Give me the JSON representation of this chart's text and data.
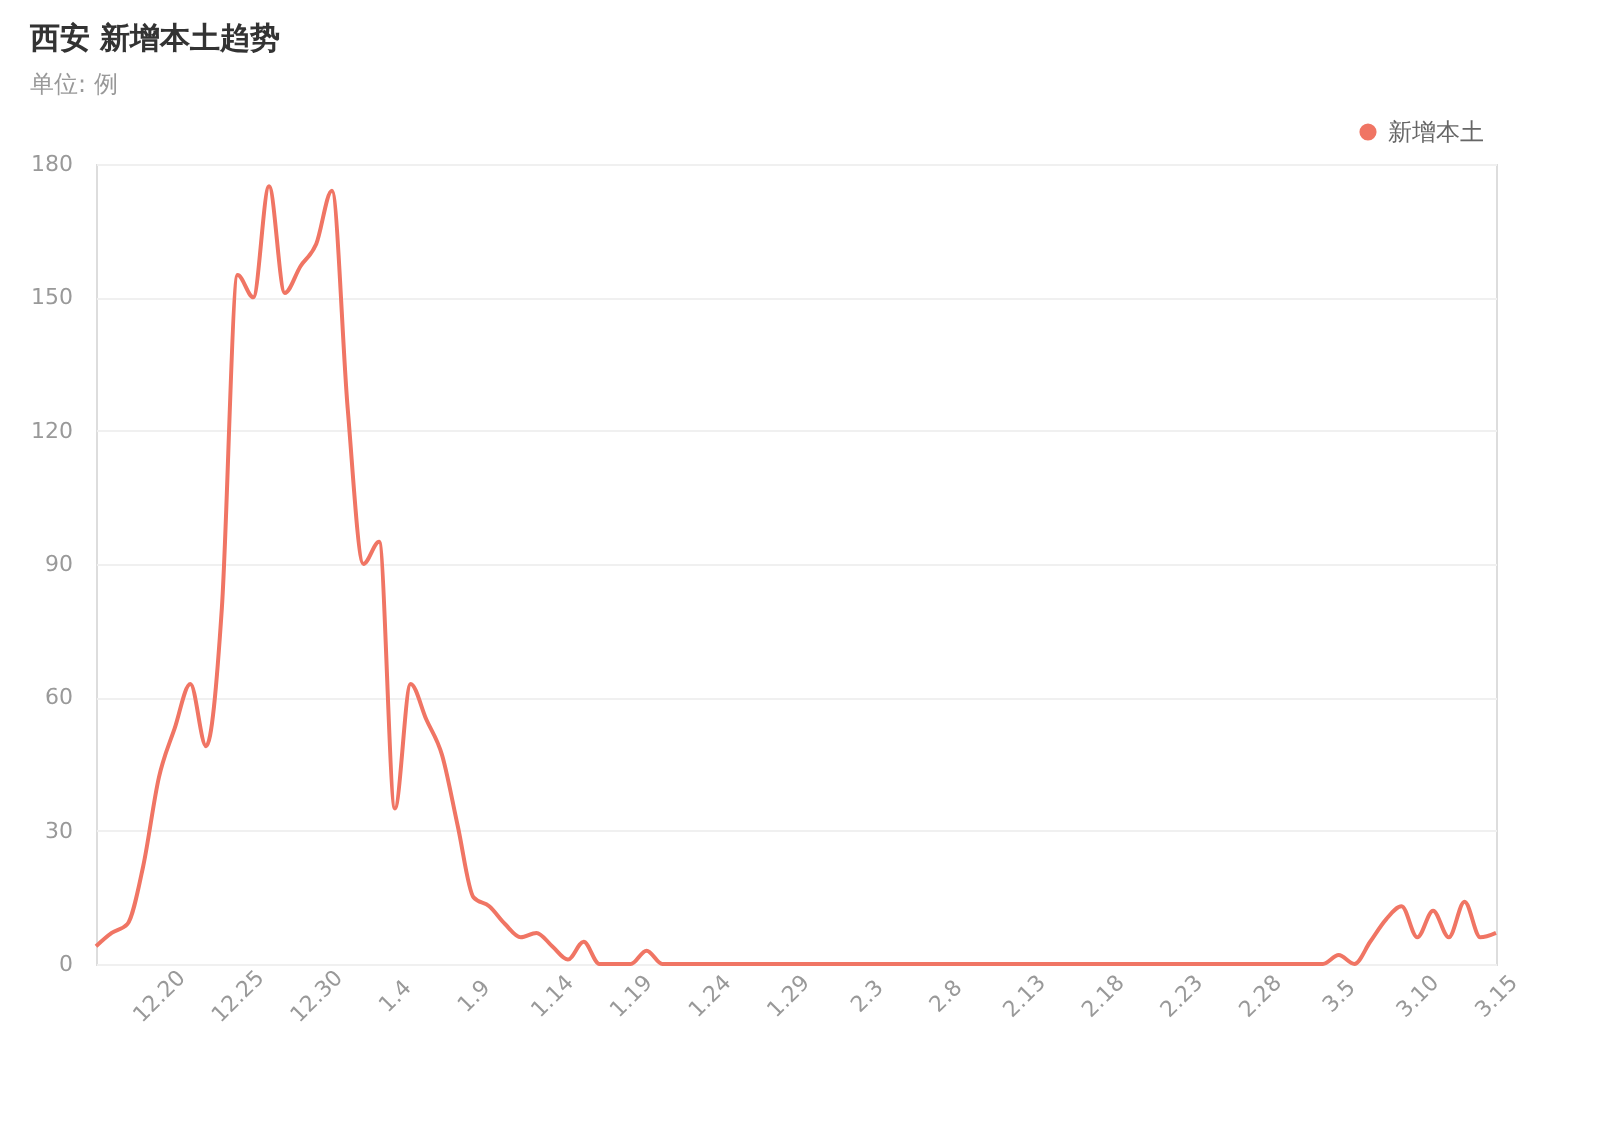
{
  "chart_data": {
    "type": "line",
    "title": "西安 新增本土趋势",
    "subtitle": "单位: 例",
    "categories": [
      null,
      null,
      null,
      null,
      "12.20",
      null,
      null,
      null,
      null,
      "12.25",
      null,
      null,
      null,
      null,
      "12.30",
      null,
      null,
      null,
      null,
      "1.4",
      null,
      null,
      null,
      null,
      "1.9",
      null,
      null,
      null,
      null,
      "1.14",
      null,
      null,
      null,
      null,
      "1.19",
      null,
      null,
      null,
      null,
      "1.24",
      null,
      null,
      null,
      null,
      "1.29",
      null,
      null,
      null,
      null,
      "2.3",
      null,
      null,
      null,
      null,
      "2.8",
      null,
      null,
      null,
      null,
      "2.13",
      null,
      null,
      null,
      null,
      "2.18",
      null,
      null,
      null,
      null,
      "2.23",
      null,
      null,
      null,
      null,
      "2.28",
      null,
      null,
      null,
      null,
      "3.5",
      null,
      null,
      null,
      null,
      "3.10",
      null,
      null,
      null,
      null,
      "3.15"
    ],
    "series": [
      {
        "name": "新增本土",
        "color": "#f07564",
        "values": [
          4,
          7,
          9,
          22,
          42,
          53,
          63,
          49,
          80,
          155,
          150,
          175,
          151,
          157,
          162,
          174,
          125,
          90,
          95,
          35,
          63,
          55,
          47,
          31,
          15,
          13,
          9,
          6,
          7,
          4,
          1,
          5,
          0,
          0,
          0,
          3,
          0,
          0,
          0,
          0,
          0,
          0,
          0,
          0,
          0,
          0,
          0,
          0,
          0,
          0,
          0,
          0,
          0,
          0,
          0,
          0,
          0,
          0,
          0,
          0,
          0,
          0,
          0,
          0,
          0,
          0,
          0,
          0,
          0,
          0,
          0,
          0,
          0,
          0,
          0,
          0,
          0,
          0,
          0,
          2,
          0,
          5,
          10,
          13,
          6,
          12,
          6,
          14,
          6,
          7
        ]
      }
    ],
    "ylim": [
      0,
      180
    ],
    "yticks": [
      0,
      30,
      60,
      90,
      120,
      150,
      180
    ],
    "grid": "y",
    "legend": "top right",
    "marker": "none",
    "line_style": "solid"
  }
}
